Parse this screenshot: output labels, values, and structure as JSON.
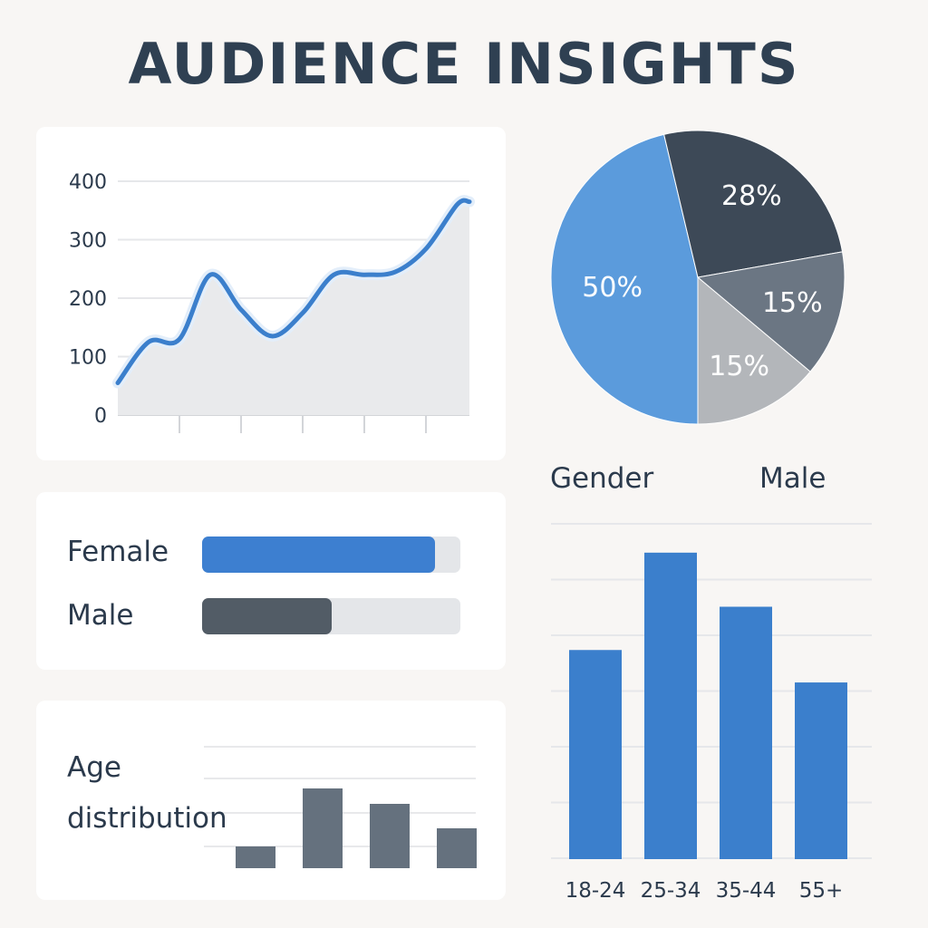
{
  "title": "AUDIENCE INSIGHTS",
  "chart_data": [
    {
      "type": "area",
      "title": "",
      "xlabel": "",
      "ylabel": "",
      "ylim": [
        0,
        400
      ],
      "yticks": [
        "0",
        "100",
        "200",
        "300",
        "400"
      ],
      "grid": true,
      "series": [
        {
          "x": [
            0,
            0.5,
            1,
            1.5,
            2,
            2.5,
            3,
            3.5,
            4,
            4.5,
            5,
            5.5,
            5.7
          ],
          "values": [
            55,
            125,
            130,
            240,
            180,
            135,
            175,
            240,
            240,
            245,
            285,
            360,
            365
          ]
        }
      ],
      "color": "#3b7fcc"
    },
    {
      "type": "pie",
      "labels": [
        "50%",
        "28%",
        "15%",
        "15%"
      ],
      "values": [
        50,
        28,
        15,
        15
      ],
      "colors": [
        "#5b9bdc",
        "#3d4957",
        "#6b7683",
        "#b3b6ba"
      ]
    },
    {
      "type": "bar",
      "orientation": "horizontal",
      "categories": [
        "Female",
        "Male"
      ],
      "values": [
        0.9,
        0.5
      ],
      "colors": [
        "#3d7fd0",
        "#525c66"
      ]
    },
    {
      "type": "bar",
      "title": "Age distribution",
      "values": [
        22,
        80,
        65,
        40
      ],
      "ylim": [
        0,
        100
      ],
      "color": "#65717e"
    },
    {
      "type": "bar",
      "categories": [
        "18-24",
        "25-34",
        "35-44",
        "55+"
      ],
      "values": [
        58,
        85,
        70,
        49
      ],
      "ylim": [
        0,
        93
      ],
      "grid": true,
      "color": "#3b7fcc"
    }
  ],
  "headers": {
    "gender": "Gender",
    "male": "Male"
  }
}
